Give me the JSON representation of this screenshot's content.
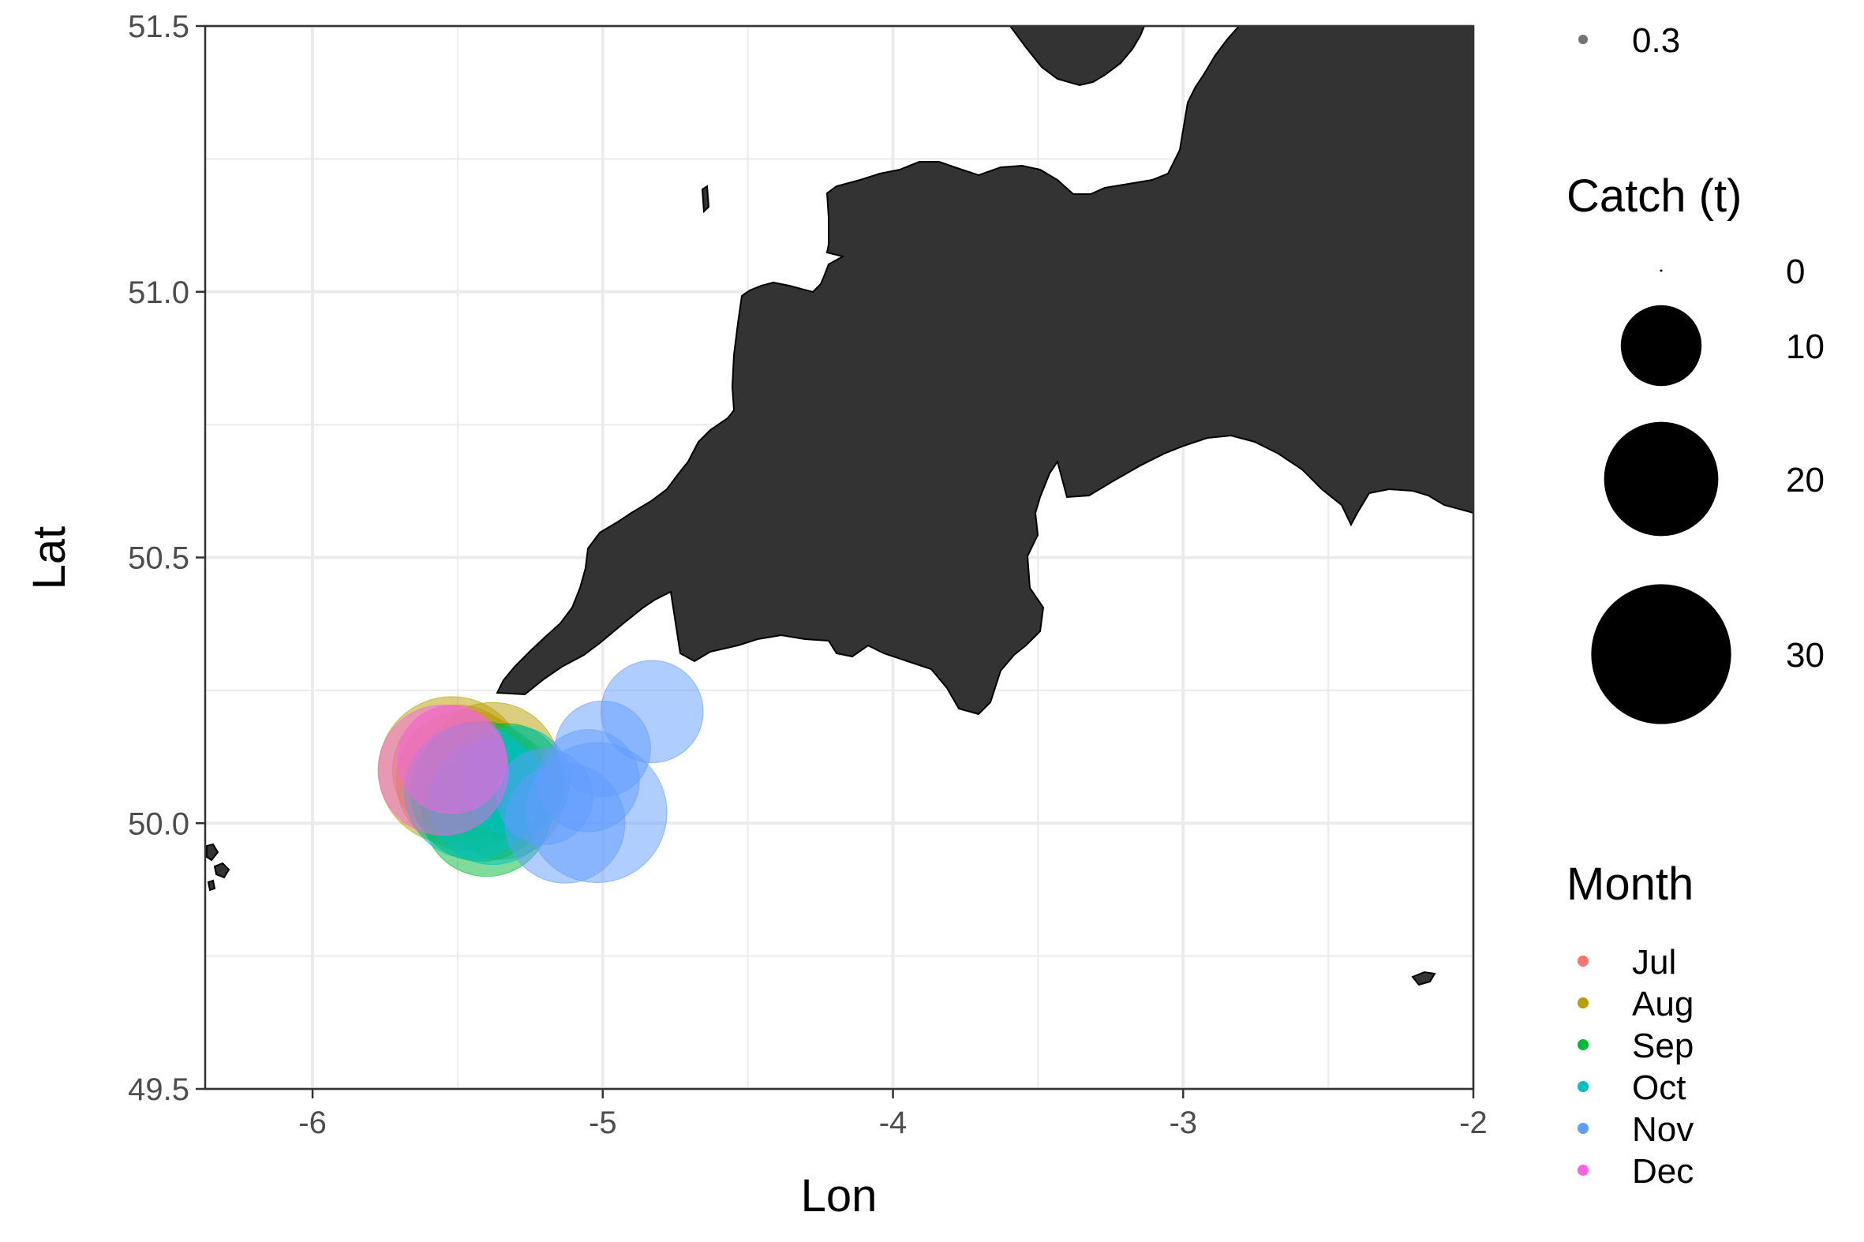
{
  "chart_data": {
    "type": "scatter",
    "subtype": "bubble map",
    "title": "",
    "xlabel": "Lon",
    "ylabel": "Lat",
    "xlim": [
      -6.37,
      -2.0
    ],
    "ylim": [
      49.5,
      51.5
    ],
    "x_ticks": [
      -6,
      -5,
      -4,
      -3,
      -2
    ],
    "y_ticks": [
      49.5,
      50.0,
      50.5,
      51.0,
      51.5
    ],
    "x_tick_labels": [
      "-6",
      "-5",
      "-4",
      "-3",
      "-2"
    ],
    "y_tick_labels": [
      "49.5",
      "50.0",
      "50.5",
      "51.0",
      "51.5"
    ],
    "grid": true,
    "background": "#ffffff",
    "grid_color": "#ebebeb",
    "land_color": "#333333",
    "legends": {
      "alpha_legend": {
        "title": "",
        "entries": [
          {
            "label": "0.3"
          }
        ],
        "placement": "top-right"
      },
      "size_legend": {
        "title": "Catch (t)",
        "entries": [
          0,
          10,
          20,
          30
        ],
        "labels": [
          "0",
          "10",
          "20",
          "30"
        ],
        "placement": "right"
      },
      "color_legend": {
        "title": "Month",
        "placement": "right",
        "entries": [
          {
            "label": "Jul",
            "color": "#F8766D"
          },
          {
            "label": "Aug",
            "color": "#B79F00"
          },
          {
            "label": "Sep",
            "color": "#00BA38"
          },
          {
            "label": "Oct",
            "color": "#00BFC4"
          },
          {
            "label": "Nov",
            "color": "#619CFF"
          },
          {
            "label": "Dec",
            "color": "#F564E3"
          }
        ]
      }
    },
    "series": [
      {
        "name": "Jul",
        "points": [
          {
            "x": -5.5,
            "y": 50.1,
            "catch": 26
          },
          {
            "x": -5.45,
            "y": 50.07,
            "catch": 20
          }
        ]
      },
      {
        "name": "Aug",
        "points": [
          {
            "x": -5.52,
            "y": 50.1,
            "catch": 33
          },
          {
            "x": -5.47,
            "y": 50.08,
            "catch": 30
          },
          {
            "x": -5.38,
            "y": 50.1,
            "catch": 28
          },
          {
            "x": -5.35,
            "y": 50.05,
            "catch": 24
          }
        ]
      },
      {
        "name": "Sep",
        "points": [
          {
            "x": -5.4,
            "y": 50.02,
            "catch": 25
          },
          {
            "x": -5.42,
            "y": 50.06,
            "catch": 30
          },
          {
            "x": -5.33,
            "y": 50.08,
            "catch": 20
          }
        ]
      },
      {
        "name": "Oct",
        "points": [
          {
            "x": -5.45,
            "y": 50.06,
            "catch": 28
          },
          {
            "x": -5.38,
            "y": 50.04,
            "catch": 24
          },
          {
            "x": -5.3,
            "y": 50.08,
            "catch": 18
          }
        ]
      },
      {
        "name": "Nov",
        "points": [
          {
            "x": -5.02,
            "y": 50.02,
            "catch": 30
          },
          {
            "x": -5.13,
            "y": 50.0,
            "catch": 22
          },
          {
            "x": -5.05,
            "y": 50.08,
            "catch": 16
          },
          {
            "x": -5.0,
            "y": 50.14,
            "catch": 14
          },
          {
            "x": -4.83,
            "y": 50.21,
            "catch": 16
          },
          {
            "x": -5.2,
            "y": 50.05,
            "catch": 14
          }
        ]
      },
      {
        "name": "Dec",
        "points": [
          {
            "x": -5.55,
            "y": 50.1,
            "catch": 26
          },
          {
            "x": -5.52,
            "y": 50.12,
            "catch": 18
          }
        ]
      }
    ]
  }
}
